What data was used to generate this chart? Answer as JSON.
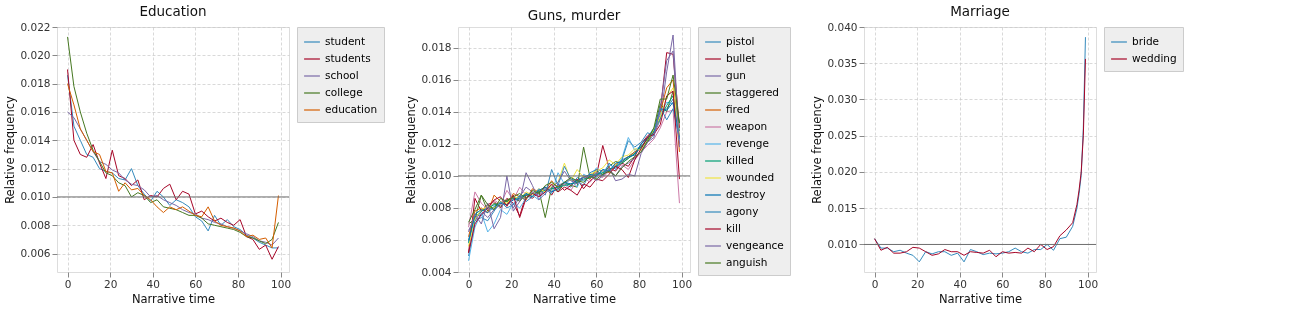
{
  "chart_data": [
    {
      "type": "line",
      "title": "Education",
      "xlabel": "Narrative time",
      "ylabel": "Relative frequency",
      "grid": true,
      "legend": "right",
      "marker": "none",
      "line_style": "solid",
      "xlim": [
        -4.95,
        103.95
      ],
      "xticks": [
        0,
        20,
        40,
        60,
        80,
        100
      ],
      "ylim": [
        0.0047,
        0.022
      ],
      "yticks": [
        {
          "value": 0.006,
          "label": "0.006"
        },
        {
          "value": 0.008,
          "label": "0.008"
        },
        {
          "value": 0.01,
          "label": "0.010"
        },
        {
          "value": 0.012,
          "label": "0.012"
        },
        {
          "value": 0.014,
          "label": "0.014"
        },
        {
          "value": 0.016,
          "label": "0.016"
        },
        {
          "value": 0.018,
          "label": "0.018"
        },
        {
          "value": 0.02,
          "label": "0.020"
        },
        {
          "value": 0.022,
          "label": "0.022"
        }
      ],
      "ref_lines": [
        {
          "axis": "y",
          "value": 0.01,
          "color": "#6e6e6e"
        }
      ],
      "x": [
        0,
        3,
        6,
        9,
        12,
        15,
        18,
        21,
        24,
        27,
        30,
        33,
        36,
        39,
        42,
        45,
        48,
        51,
        54,
        57,
        60,
        63,
        66,
        69,
        72,
        75,
        78,
        81,
        84,
        87,
        90,
        93,
        96,
        99
      ],
      "series": [
        {
          "name": "student",
          "color": "#348abd",
          "values": [
            0.0186,
            0.015,
            0.014,
            0.013,
            0.0128,
            0.012,
            0.0118,
            0.0117,
            0.0113,
            0.0112,
            0.012,
            0.0108,
            0.0102,
            0.0097,
            0.0104,
            0.01,
            0.0094,
            0.0098,
            0.0096,
            0.0093,
            0.0086,
            0.0083,
            0.0076,
            0.0087,
            0.008,
            0.0084,
            0.0079,
            0.0077,
            0.0073,
            0.0071,
            0.0068,
            0.0066,
            0.0064,
            0.0064
          ]
        },
        {
          "name": "students",
          "color": "#a60628",
          "values": [
            0.019,
            0.014,
            0.013,
            0.0128,
            0.0137,
            0.0124,
            0.0113,
            0.0133,
            0.0115,
            0.0113,
            0.0108,
            0.0112,
            0.0098,
            0.0101,
            0.01,
            0.0106,
            0.0109,
            0.0098,
            0.0104,
            0.0102,
            0.0088,
            0.009,
            0.0086,
            0.0083,
            0.0085,
            0.0082,
            0.008,
            0.0084,
            0.0072,
            0.007,
            0.0063,
            0.0066,
            0.0056,
            0.0065
          ]
        },
        {
          "name": "school",
          "color": "#7a68a6",
          "values": [
            0.016,
            0.0156,
            0.0148,
            0.014,
            0.0132,
            0.0125,
            0.0123,
            0.0119,
            0.0117,
            0.0112,
            0.0109,
            0.0108,
            0.0105,
            0.01,
            0.0101,
            0.0098,
            0.0096,
            0.0094,
            0.0091,
            0.0089,
            0.0088,
            0.0085,
            0.0084,
            0.0082,
            0.0081,
            0.0079,
            0.0078,
            0.0076,
            0.0074,
            0.0072,
            0.0069,
            0.0068,
            0.0066,
            0.0071
          ]
        },
        {
          "name": "college",
          "color": "#467821",
          "values": [
            0.0213,
            0.0178,
            0.016,
            0.0145,
            0.0133,
            0.0125,
            0.0117,
            0.0115,
            0.011,
            0.0108,
            0.01,
            0.0103,
            0.0101,
            0.0096,
            0.0098,
            0.0093,
            0.0092,
            0.0091,
            0.0089,
            0.0087,
            0.0087,
            0.0085,
            0.0081,
            0.008,
            0.0079,
            0.0078,
            0.0077,
            0.0075,
            0.0072,
            0.0071,
            0.0069,
            0.0067,
            0.007,
            0.0082
          ]
        },
        {
          "name": "education",
          "color": "#d55e00",
          "values": [
            0.018,
            0.0165,
            0.0148,
            0.014,
            0.0132,
            0.013,
            0.0118,
            0.0117,
            0.0104,
            0.011,
            0.0105,
            0.0106,
            0.0101,
            0.0098,
            0.0093,
            0.0089,
            0.0093,
            0.0091,
            0.0093,
            0.009,
            0.0087,
            0.0086,
            0.0093,
            0.0083,
            0.008,
            0.0079,
            0.0078,
            0.0076,
            0.0072,
            0.0073,
            0.007,
            0.0071,
            0.0064,
            0.0101
          ]
        }
      ]
    },
    {
      "type": "line",
      "title": "Guns, murder",
      "xlabel": "Narrative time",
      "ylabel": "Relative frequency",
      "grid": true,
      "legend": "right",
      "marker": "none",
      "line_style": "solid",
      "xlim": [
        -4.95,
        103.95
      ],
      "xticks": [
        0,
        20,
        40,
        60,
        80,
        100
      ],
      "ylim": [
        0.004,
        0.0193
      ],
      "yticks": [
        {
          "value": 0.004,
          "label": "0.004"
        },
        {
          "value": 0.006,
          "label": "0.006"
        },
        {
          "value": 0.008,
          "label": "0.008"
        },
        {
          "value": 0.01,
          "label": "0.010"
        },
        {
          "value": 0.012,
          "label": "0.012"
        },
        {
          "value": 0.014,
          "label": "0.014"
        },
        {
          "value": 0.016,
          "label": "0.016"
        },
        {
          "value": 0.018,
          "label": "0.018"
        }
      ],
      "ref_lines": [
        {
          "axis": "y",
          "value": 0.01,
          "color": "#6e6e6e"
        }
      ],
      "x": [
        0,
        3,
        6,
        9,
        12,
        15,
        18,
        21,
        24,
        27,
        30,
        33,
        36,
        39,
        42,
        45,
        48,
        51,
        54,
        57,
        60,
        63,
        66,
        69,
        72,
        75,
        78,
        81,
        84,
        87,
        90,
        93,
        96,
        99
      ],
      "series": [
        {
          "name": "pistol",
          "color": "#348abd",
          "values": [
            0.006,
            0.0076,
            0.0075,
            0.008,
            0.0079,
            0.0083,
            0.0082,
            0.0086,
            0.0085,
            0.0088,
            0.009,
            0.0087,
            0.0092,
            0.0094,
            0.0091,
            0.0095,
            0.0093,
            0.0099,
            0.0097,
            0.01,
            0.0099,
            0.0104,
            0.0102,
            0.0106,
            0.011,
            0.0112,
            0.0115,
            0.0117,
            0.0124,
            0.013,
            0.0138,
            0.0142,
            0.0148,
            0.0125
          ]
        },
        {
          "name": "bullet",
          "color": "#a60628",
          "values": [
            0.0052,
            0.0086,
            0.0078,
            0.0082,
            0.0084,
            0.008,
            0.0086,
            0.0083,
            0.0075,
            0.0088,
            0.0086,
            0.009,
            0.0093,
            0.0088,
            0.0095,
            0.0091,
            0.0094,
            0.0098,
            0.0092,
            0.0097,
            0.01,
            0.0119,
            0.0105,
            0.0103,
            0.0108,
            0.0106,
            0.0112,
            0.012,
            0.0125,
            0.0128,
            0.014,
            0.0177,
            0.0176,
            0.013
          ]
        },
        {
          "name": "gun",
          "color": "#7a68a6",
          "values": [
            0.0066,
            0.0072,
            0.0078,
            0.0074,
            0.0079,
            0.0082,
            0.0085,
            0.008,
            0.0087,
            0.0093,
            0.009,
            0.0088,
            0.0093,
            0.009,
            0.0094,
            0.0096,
            0.0098,
            0.0095,
            0.01,
            0.0098,
            0.0102,
            0.01,
            0.0104,
            0.01,
            0.0106,
            0.0108,
            0.0111,
            0.0115,
            0.0121,
            0.0126,
            0.0135,
            0.0165,
            0.0188,
            0.012
          ]
        },
        {
          "name": "staggered",
          "color": "#467821",
          "values": [
            0.007,
            0.0073,
            0.0088,
            0.0078,
            0.0083,
            0.0081,
            0.0085,
            0.0087,
            0.0084,
            0.0089,
            0.0087,
            0.0091,
            0.0074,
            0.0093,
            0.009,
            0.0096,
            0.0094,
            0.0093,
            0.0118,
            0.0099,
            0.0103,
            0.0101,
            0.0106,
            0.0109,
            0.0108,
            0.0111,
            0.0114,
            0.0119,
            0.0121,
            0.0128,
            0.0145,
            0.014,
            0.0153,
            0.0133
          ]
        },
        {
          "name": "fired",
          "color": "#d55e00",
          "values": [
            0.0062,
            0.0078,
            0.008,
            0.0077,
            0.0088,
            0.0084,
            0.0082,
            0.0089,
            0.0087,
            0.0085,
            0.0092,
            0.009,
            0.0091,
            0.0097,
            0.0092,
            0.0095,
            0.0098,
            0.0096,
            0.01,
            0.0098,
            0.0104,
            0.0103,
            0.0102,
            0.0107,
            0.0109,
            0.0112,
            0.0115,
            0.0118,
            0.0124,
            0.0127,
            0.014,
            0.0155,
            0.016,
            0.0115
          ]
        },
        {
          "name": "weapon",
          "color": "#cc79a7",
          "values": [
            0.0068,
            0.009,
            0.0083,
            0.0079,
            0.0085,
            0.0082,
            0.0091,
            0.0085,
            0.0093,
            0.0088,
            0.009,
            0.0087,
            0.0092,
            0.009,
            0.0093,
            0.0095,
            0.0091,
            0.0097,
            0.0099,
            0.0096,
            0.0101,
            0.0099,
            0.0103,
            0.0105,
            0.0107,
            0.0104,
            0.011,
            0.0115,
            0.0119,
            0.0123,
            0.013,
            0.014,
            0.0141,
            0.0083
          ]
        },
        {
          "name": "revenge",
          "color": "#56b4e9",
          "values": [
            0.0047,
            0.0068,
            0.0077,
            0.0065,
            0.007,
            0.0079,
            0.0076,
            0.0083,
            0.008,
            0.0086,
            0.0088,
            0.0085,
            0.0092,
            0.0089,
            0.0102,
            0.0095,
            0.0098,
            0.0093,
            0.0101,
            0.0099,
            0.0105,
            0.0102,
            0.0107,
            0.0105,
            0.0111,
            0.0124,
            0.0116,
            0.0119,
            0.0123,
            0.0129,
            0.0139,
            0.0146,
            0.0145,
            0.0122
          ]
        },
        {
          "name": "killed",
          "color": "#009e73",
          "values": [
            0.0058,
            0.0074,
            0.0078,
            0.008,
            0.0082,
            0.0083,
            0.0084,
            0.0086,
            0.0087,
            0.0088,
            0.0089,
            0.009,
            0.0091,
            0.0092,
            0.0093,
            0.0094,
            0.0095,
            0.0096,
            0.0098,
            0.0099,
            0.0101,
            0.0102,
            0.0104,
            0.0106,
            0.0108,
            0.0111,
            0.0114,
            0.0118,
            0.0123,
            0.0128,
            0.0136,
            0.0144,
            0.015,
            0.0128
          ]
        },
        {
          "name": "wounded",
          "color": "#f0e442",
          "values": [
            0.0056,
            0.0073,
            0.0079,
            0.0081,
            0.008,
            0.0084,
            0.0083,
            0.0087,
            0.0086,
            0.009,
            0.0088,
            0.0092,
            0.009,
            0.0094,
            0.0096,
            0.0108,
            0.0097,
            0.0104,
            0.0099,
            0.0101,
            0.0103,
            0.0105,
            0.011,
            0.0107,
            0.0112,
            0.0113,
            0.0117,
            0.0116,
            0.0122,
            0.0129,
            0.0137,
            0.0149,
            0.0155,
            0.0125
          ]
        },
        {
          "name": "destroy",
          "color": "#0072b2",
          "values": [
            0.0059,
            0.0076,
            0.0079,
            0.0077,
            0.0081,
            0.0083,
            0.0082,
            0.0085,
            0.0086,
            0.0089,
            0.0087,
            0.0091,
            0.0093,
            0.009,
            0.0092,
            0.0096,
            0.0095,
            0.0097,
            0.0099,
            0.0101,
            0.01,
            0.0104,
            0.0103,
            0.0108,
            0.0109,
            0.0112,
            0.0113,
            0.012,
            0.0124,
            0.0127,
            0.0142,
            0.0141,
            0.0146,
            0.0124
          ]
        },
        {
          "name": "agony",
          "color": "#348abd",
          "values": [
            0.005,
            0.0072,
            0.0074,
            0.0072,
            0.0078,
            0.0084,
            0.008,
            0.0082,
            0.0088,
            0.0084,
            0.0087,
            0.0092,
            0.0088,
            0.0104,
            0.0094,
            0.0106,
            0.0098,
            0.0097,
            0.0094,
            0.0102,
            0.0104,
            0.01,
            0.0108,
            0.0104,
            0.011,
            0.0122,
            0.0118,
            0.0121,
            0.0127,
            0.0125,
            0.0143,
            0.0135,
            0.0142,
            0.0123
          ]
        },
        {
          "name": "kill",
          "color": "#a60628",
          "values": [
            0.0052,
            0.007,
            0.0076,
            0.008,
            0.0085,
            0.0087,
            0.0081,
            0.0088,
            0.0074,
            0.0086,
            0.0089,
            0.0087,
            0.009,
            0.0095,
            0.009,
            0.0093,
            0.0091,
            0.0088,
            0.0095,
            0.0093,
            0.0098,
            0.0097,
            0.0101,
            0.0106,
            0.0104,
            0.0099,
            0.011,
            0.0117,
            0.0124,
            0.0126,
            0.0132,
            0.015,
            0.0153,
            0.0098
          ]
        },
        {
          "name": "vengeance",
          "color": "#7a68a6",
          "values": [
            0.0065,
            0.0076,
            0.007,
            0.0083,
            0.0067,
            0.0074,
            0.01,
            0.0078,
            0.0084,
            0.0102,
            0.0094,
            0.0085,
            0.0089,
            0.0093,
            0.0096,
            0.0103,
            0.0097,
            0.0095,
            0.0099,
            0.01,
            0.0097,
            0.01,
            0.0105,
            0.0097,
            0.0098,
            0.0101,
            0.01,
            0.0114,
            0.0121,
            0.0124,
            0.0142,
            0.0172,
            0.0178,
            0.0118
          ]
        },
        {
          "name": "anguish",
          "color": "#467821",
          "values": [
            0.0071,
            0.0079,
            0.0088,
            0.0082,
            0.0079,
            0.0086,
            0.0084,
            0.0087,
            0.0089,
            0.0086,
            0.0091,
            0.0089,
            0.0094,
            0.0096,
            0.0093,
            0.0096,
            0.0099,
            0.0097,
            0.0096,
            0.01,
            0.0098,
            0.0101,
            0.0103,
            0.01,
            0.0105,
            0.0109,
            0.0112,
            0.0115,
            0.0122,
            0.013,
            0.0148,
            0.0148,
            0.0163,
            0.0133
          ]
        }
      ]
    },
    {
      "type": "line",
      "title": "Marriage",
      "xlabel": "Narrative time",
      "ylabel": "Relative frequency",
      "grid": true,
      "legend": "right",
      "marker": "none",
      "line_style": "solid",
      "xlim": [
        -4.95,
        103.95
      ],
      "xticks": [
        0,
        20,
        40,
        60,
        80,
        100
      ],
      "ylim": [
        0.0062,
        0.04
      ],
      "yticks": [
        {
          "value": 0.01,
          "label": "0.010"
        },
        {
          "value": 0.015,
          "label": "0.015"
        },
        {
          "value": 0.02,
          "label": "0.020"
        },
        {
          "value": 0.025,
          "label": "0.025"
        },
        {
          "value": 0.03,
          "label": "0.030"
        },
        {
          "value": 0.035,
          "label": "0.035"
        },
        {
          "value": 0.04,
          "label": "0.040"
        }
      ],
      "ref_lines": [
        {
          "axis": "y",
          "value": 0.01,
          "color": "#6e6e6e"
        }
      ],
      "x": [
        0,
        3,
        6,
        9,
        12,
        15,
        18,
        21,
        24,
        27,
        30,
        33,
        36,
        39,
        42,
        45,
        48,
        51,
        54,
        57,
        60,
        63,
        66,
        69,
        72,
        75,
        78,
        81,
        84,
        87,
        90,
        93,
        95,
        96,
        97,
        98,
        99
      ],
      "series": [
        {
          "name": "bride",
          "color": "#348abd",
          "values": [
            0.0108,
            0.0095,
            0.0095,
            0.009,
            0.0092,
            0.0088,
            0.0085,
            0.0076,
            0.009,
            0.0087,
            0.009,
            0.009,
            0.0085,
            0.0088,
            0.0076,
            0.0093,
            0.009,
            0.0086,
            0.0088,
            0.0087,
            0.0088,
            0.009,
            0.0095,
            0.009,
            0.0088,
            0.0093,
            0.0093,
            0.01,
            0.0092,
            0.0108,
            0.011,
            0.0125,
            0.015,
            0.017,
            0.0195,
            0.026,
            0.0386
          ]
        },
        {
          "name": "wedding",
          "color": "#a60628",
          "values": [
            0.0108,
            0.0092,
            0.0096,
            0.0088,
            0.0088,
            0.009,
            0.0096,
            0.0095,
            0.009,
            0.0085,
            0.0087,
            0.0093,
            0.009,
            0.009,
            0.0085,
            0.009,
            0.0089,
            0.0088,
            0.0092,
            0.0083,
            0.009,
            0.0088,
            0.0089,
            0.0088,
            0.0095,
            0.009,
            0.01,
            0.0093,
            0.0097,
            0.0112,
            0.012,
            0.013,
            0.0155,
            0.0175,
            0.02,
            0.025,
            0.0356
          ]
        }
      ]
    }
  ]
}
